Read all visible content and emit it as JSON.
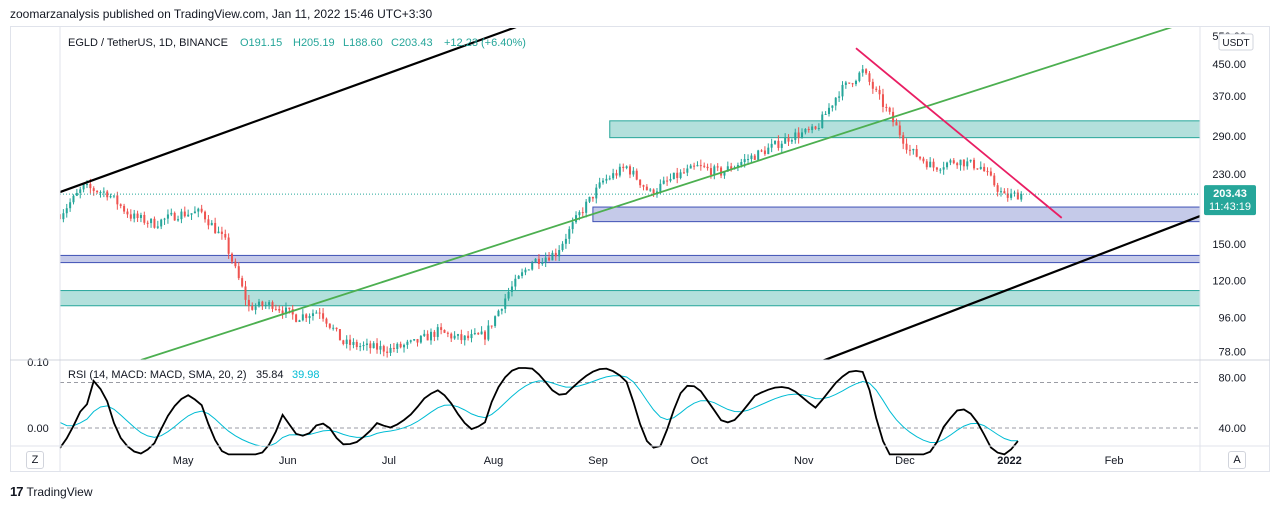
{
  "publisher_line": "zoomarzanalysis published on TradingView.com, Jan 11, 2022 15:46 UTC+3:30",
  "brand": "TradingView",
  "zoom_button": "Z",
  "auto_button": "A",
  "currency_label": "USDT",
  "colors": {
    "up": "#26a69a",
    "down": "#ef5350",
    "green_line": "#4caf50",
    "pink_line": "#e91e63",
    "teal_zone": "#26a69a",
    "blue_zone": "#3f51b5",
    "rsi": "#000000",
    "signal": "#00bcd4"
  },
  "chart_data": {
    "type": "candlestick",
    "symbol": "EGLD / TetherUS, 1D, BINANCE",
    "ohlc_legend": {
      "open": "O191.15",
      "high": "H205.19",
      "low": "L188.60",
      "close": "C203.43",
      "change": "+12.23 (+6.40%)"
    },
    "last_price": "203.43",
    "countdown": "11:43:19",
    "y_ticks": [
      "550.00",
      "450.00",
      "370.00",
      "290.00",
      "230.00",
      "150.00",
      "120.00",
      "96.00",
      "78.00"
    ],
    "x_ticks": [
      "May",
      "Jun",
      "Jul",
      "Aug",
      "Sep",
      "Oct",
      "Nov",
      "Dec",
      "2022",
      "Feb"
    ],
    "price_scale": "log",
    "ylim": [
      74,
      560
    ],
    "date_range": [
      "2021-04-01",
      "2022-03-05"
    ],
    "zones": [
      {
        "kind": "teal",
        "low": 287,
        "high": 318
      },
      {
        "kind": "blue",
        "low": 172,
        "high": 188
      },
      {
        "kind": "blue",
        "low": 134,
        "high": 140
      },
      {
        "kind": "teal",
        "low": 103,
        "high": 113
      }
    ],
    "trendlines": [
      {
        "kind": "black",
        "from": [
          "2021-04-01",
          206
        ],
        "to": [
          "2021-08-17",
          575
        ]
      },
      {
        "kind": "black",
        "from": [
          "2021-11-12",
          73
        ],
        "to": [
          "2022-03-05",
          178
        ]
      },
      {
        "kind": "green",
        "from": [
          "2021-04-25",
          74
        ],
        "to": [
          "2022-03-05",
          595
        ]
      },
      {
        "kind": "pink",
        "from": [
          "2021-11-23",
          495
        ],
        "to": [
          "2022-01-23",
          176
        ]
      }
    ],
    "closes": [
      [
        "2021-04-01",
        180
      ],
      [
        "2021-04-08",
        212
      ],
      [
        "2021-04-15",
        205
      ],
      [
        "2021-04-22",
        178
      ],
      [
        "2021-04-29",
        170
      ],
      [
        "2021-05-06",
        180
      ],
      [
        "2021-05-13",
        182
      ],
      [
        "2021-05-20",
        152
      ],
      [
        "2021-05-27",
        102
      ],
      [
        "2021-06-03",
        104
      ],
      [
        "2021-06-10",
        96
      ],
      [
        "2021-06-17",
        100
      ],
      [
        "2021-06-24",
        82
      ],
      [
        "2021-07-01",
        80
      ],
      [
        "2021-07-08",
        79
      ],
      [
        "2021-07-15",
        82
      ],
      [
        "2021-07-22",
        88
      ],
      [
        "2021-07-29",
        84
      ],
      [
        "2021-08-05",
        86
      ],
      [
        "2021-08-12",
        112
      ],
      [
        "2021-08-19",
        135
      ],
      [
        "2021-08-26",
        142
      ],
      [
        "2021-09-02",
        180
      ],
      [
        "2021-09-09",
        220
      ],
      [
        "2021-09-16",
        240
      ],
      [
        "2021-09-23",
        205
      ],
      [
        "2021-09-30",
        225
      ],
      [
        "2021-10-07",
        240
      ],
      [
        "2021-10-14",
        232
      ],
      [
        "2021-10-21",
        250
      ],
      [
        "2021-10-28",
        268
      ],
      [
        "2021-11-04",
        290
      ],
      [
        "2021-11-11",
        300
      ],
      [
        "2021-11-18",
        380
      ],
      [
        "2021-11-25",
        430
      ],
      [
        "2021-12-02",
        340
      ],
      [
        "2021-12-09",
        265
      ],
      [
        "2021-12-16",
        240
      ],
      [
        "2021-12-23",
        250
      ],
      [
        "2021-12-30",
        240
      ],
      [
        "2022-01-06",
        200
      ],
      [
        "2022-01-11",
        203.43
      ]
    ],
    "rsi_panel": {
      "label": "RSI (14, MACD: MACD, SMA, 20, 2)",
      "rsi_value": "35.84",
      "signal_value": "39.98",
      "right_ticks": [
        "80.00",
        "40.00"
      ],
      "left_ticks": [
        "0.10",
        "0.00"
      ]
    }
  }
}
